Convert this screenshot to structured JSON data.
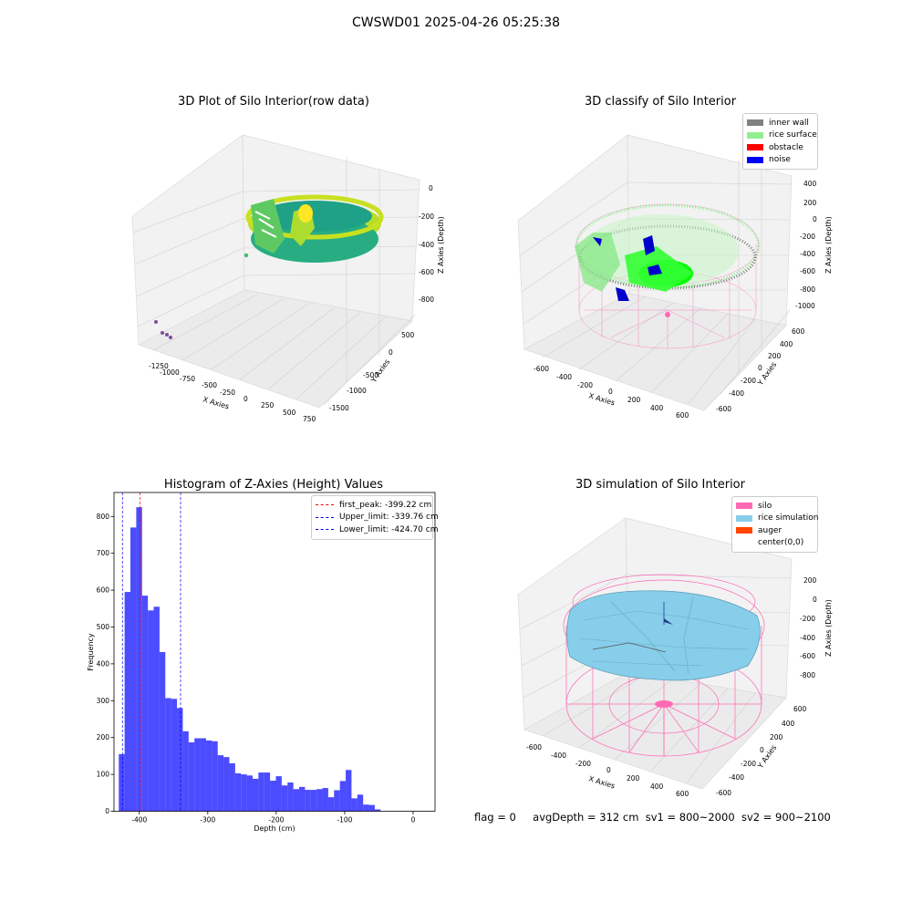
{
  "suptitle": "CWSWD01 2025-04-26 05:25:38",
  "status": {
    "flag": "flag = 0",
    "avg": "avgDepth = 312 cm",
    "sv1": "sv1 = 800~2000",
    "sv2": "sv2 = 900~2100"
  },
  "plot1": {
    "title": "3D Plot of Silo Interior(row data)",
    "xlabel": "X Axies",
    "ylabel": "Y Axies",
    "zlabel": "Z Axies (Depth)",
    "xticks": [
      "-1250",
      "-1000",
      "-750",
      "-500",
      "-250",
      "0",
      "250",
      "500",
      "750"
    ],
    "yticks": [
      "500",
      "0",
      "-500",
      "-1000",
      "-1500"
    ],
    "zticks": [
      "0",
      "-200",
      "-400",
      "-600",
      "-800"
    ]
  },
  "plot2": {
    "title": "3D classify of Silo Interior",
    "xlabel": "X Axies",
    "ylabel": "Y Axies",
    "zlabel": "Z Axies (Depth)",
    "xticks": [
      "-600",
      "-400",
      "-200",
      "0",
      "200",
      "400",
      "600"
    ],
    "yticks": [
      "600",
      "400",
      "200",
      "0",
      "-200",
      "-400",
      "-600"
    ],
    "zticks": [
      "400",
      "200",
      "0",
      "-200",
      "-400",
      "-600",
      "-800",
      "-1000"
    ],
    "legend": [
      {
        "label": "inner wall",
        "color": "#808080"
      },
      {
        "label": "rice surface",
        "color": "#90ee90"
      },
      {
        "label": "obstacle",
        "color": "#ff0000"
      },
      {
        "label": "noise",
        "color": "#0000ff"
      }
    ]
  },
  "plot4": {
    "title": "3D simulation of Silo Interior",
    "xlabel": "X Axies",
    "ylabel": "Y Axies",
    "zlabel": "Z Axies (Depth)",
    "xticks": [
      "-600",
      "-400",
      "-200",
      "0",
      "200",
      "400",
      "600"
    ],
    "yticks": [
      "600",
      "400",
      "200",
      "0",
      "-200",
      "-400",
      "-600"
    ],
    "zticks": [
      "200",
      "0",
      "-200",
      "-400",
      "-600",
      "-800"
    ],
    "legend": [
      {
        "label": "silo",
        "color": "#ff69b4"
      },
      {
        "label": "rice simulation",
        "color": "#87ceeb"
      },
      {
        "label": "auger",
        "color": "#ff4500"
      },
      {
        "label": "center(0,0)",
        "color": "#ffffff"
      }
    ]
  },
  "chart_data": {
    "type": "bar",
    "title": "Histogram of Z-Axies (Height) Values",
    "xlabel": "Depth (cm)",
    "ylabel": "Frequency",
    "xlim": [
      -437,
      32
    ],
    "ylim": [
      0,
      865
    ],
    "xticks": [
      -400,
      -300,
      -200,
      -100,
      0
    ],
    "yticks": [
      0,
      100,
      200,
      300,
      400,
      500,
      600,
      700,
      800
    ],
    "bin_start": -430,
    "bin_width": 8.5,
    "values": [
      155,
      595,
      770,
      825,
      585,
      545,
      555,
      432,
      307,
      305,
      280,
      217,
      187,
      198,
      198,
      192,
      190,
      152,
      147,
      130,
      103,
      100,
      97,
      88,
      105,
      105,
      83,
      95,
      70,
      78,
      60,
      66,
      58,
      58,
      60,
      63,
      38,
      57,
      82,
      112,
      35,
      45,
      18,
      17,
      5
    ],
    "color": "#0000ff",
    "vlines": [
      {
        "label": "first_peak: -399.22 cm",
        "x": -399.22,
        "color": "#ff0000"
      },
      {
        "label": "Upper_limit: -339.76 cm",
        "x": -339.76,
        "color": "#0000ff"
      },
      {
        "label": "Lower_limit: -424.70 cm",
        "x": -424.7,
        "color": "#0000ff"
      }
    ],
    "legend_position": "top-right"
  }
}
